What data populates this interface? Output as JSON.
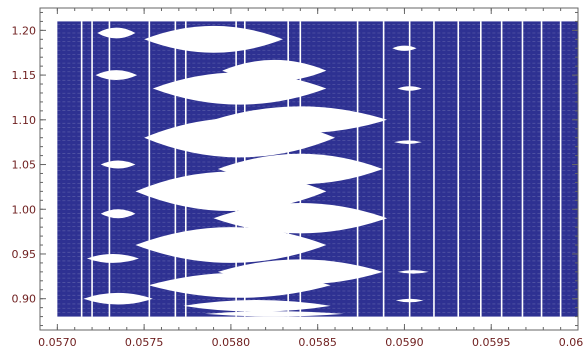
{
  "chart_data": {
    "type": "heatmap",
    "title": "",
    "xlabel": "",
    "ylabel": "",
    "xlim": [
      0.0569,
      0.06
    ],
    "ylim": [
      0.865,
      1.225
    ],
    "data_region": {
      "x": [
        0.057,
        0.06
      ],
      "y": [
        0.88,
        1.21
      ]
    },
    "x_ticks": [
      0.057,
      0.0575,
      0.058,
      0.0585,
      0.059,
      0.0595,
      0.06
    ],
    "x_tick_labels": [
      "0.0570",
      "0.0575",
      "0.0580",
      "0.0585",
      "0.0590",
      "0.0595",
      "0.0600"
    ],
    "y_ticks": [
      0.9,
      0.95,
      1.0,
      1.05,
      1.1,
      1.15,
      1.2
    ],
    "y_tick_labels": [
      "0.90",
      "0.95",
      "1.00",
      "1.05",
      "1.10",
      "1.15",
      "1.20"
    ],
    "fill_color": "#2e3192",
    "background_color": "#ffffff",
    "frame_color": "#666666",
    "tick_label_color": "#6e1e1e",
    "vertical_gaps_x": [
      0.05714,
      0.0572,
      0.0573,
      0.05753,
      0.05768,
      0.05774,
      0.05803,
      0.05808,
      0.05833,
      0.0584,
      0.05873,
      0.05888,
      0.05903,
      0.05917,
      0.05931,
      0.05944,
      0.05956,
      0.05968,
      0.05979,
      0.0599
    ],
    "islands": [
      {
        "x": 0.05734,
        "y": 1.197,
        "w": 0.00022,
        "h": 0.012
      },
      {
        "x": 0.05734,
        "y": 1.15,
        "w": 0.00024,
        "h": 0.011
      },
      {
        "x": 0.05735,
        "y": 1.05,
        "w": 0.0002,
        "h": 0.009
      },
      {
        "x": 0.05735,
        "y": 0.995,
        "w": 0.0002,
        "h": 0.01
      },
      {
        "x": 0.05732,
        "y": 0.945,
        "w": 0.0003,
        "h": 0.01
      },
      {
        "x": 0.05735,
        "y": 0.9,
        "w": 0.0004,
        "h": 0.013
      },
      {
        "x": 0.0579,
        "y": 1.19,
        "w": 0.0008,
        "h": 0.03
      },
      {
        "x": 0.05805,
        "y": 1.135,
        "w": 0.001,
        "h": 0.036
      },
      {
        "x": 0.05825,
        "y": 1.155,
        "w": 0.0006,
        "h": 0.024
      },
      {
        "x": 0.05805,
        "y": 1.08,
        "w": 0.0011,
        "h": 0.044
      },
      {
        "x": 0.0584,
        "y": 1.1,
        "w": 0.001,
        "h": 0.03
      },
      {
        "x": 0.058,
        "y": 1.02,
        "w": 0.0011,
        "h": 0.044
      },
      {
        "x": 0.0584,
        "y": 1.045,
        "w": 0.00095,
        "h": 0.034
      },
      {
        "x": 0.058,
        "y": 0.96,
        "w": 0.0011,
        "h": 0.04
      },
      {
        "x": 0.0584,
        "y": 0.99,
        "w": 0.001,
        "h": 0.034
      },
      {
        "x": 0.05805,
        "y": 0.915,
        "w": 0.00105,
        "h": 0.028
      },
      {
        "x": 0.0584,
        "y": 0.93,
        "w": 0.00095,
        "h": 0.028
      },
      {
        "x": 0.05815,
        "y": 0.892,
        "w": 0.00085,
        "h": 0.013
      },
      {
        "x": 0.05825,
        "y": 0.883,
        "w": 0.0008,
        "h": 0.006
      },
      {
        "x": 0.059,
        "y": 1.18,
        "w": 0.00014,
        "h": 0.006
      },
      {
        "x": 0.05903,
        "y": 1.135,
        "w": 0.00014,
        "h": 0.005
      },
      {
        "x": 0.05902,
        "y": 1.075,
        "w": 0.00016,
        "h": 0.004
      },
      {
        "x": 0.05905,
        "y": 0.93,
        "w": 0.00018,
        "h": 0.004
      },
      {
        "x": 0.05903,
        "y": 0.898,
        "w": 0.00016,
        "h": 0.004
      }
    ]
  }
}
